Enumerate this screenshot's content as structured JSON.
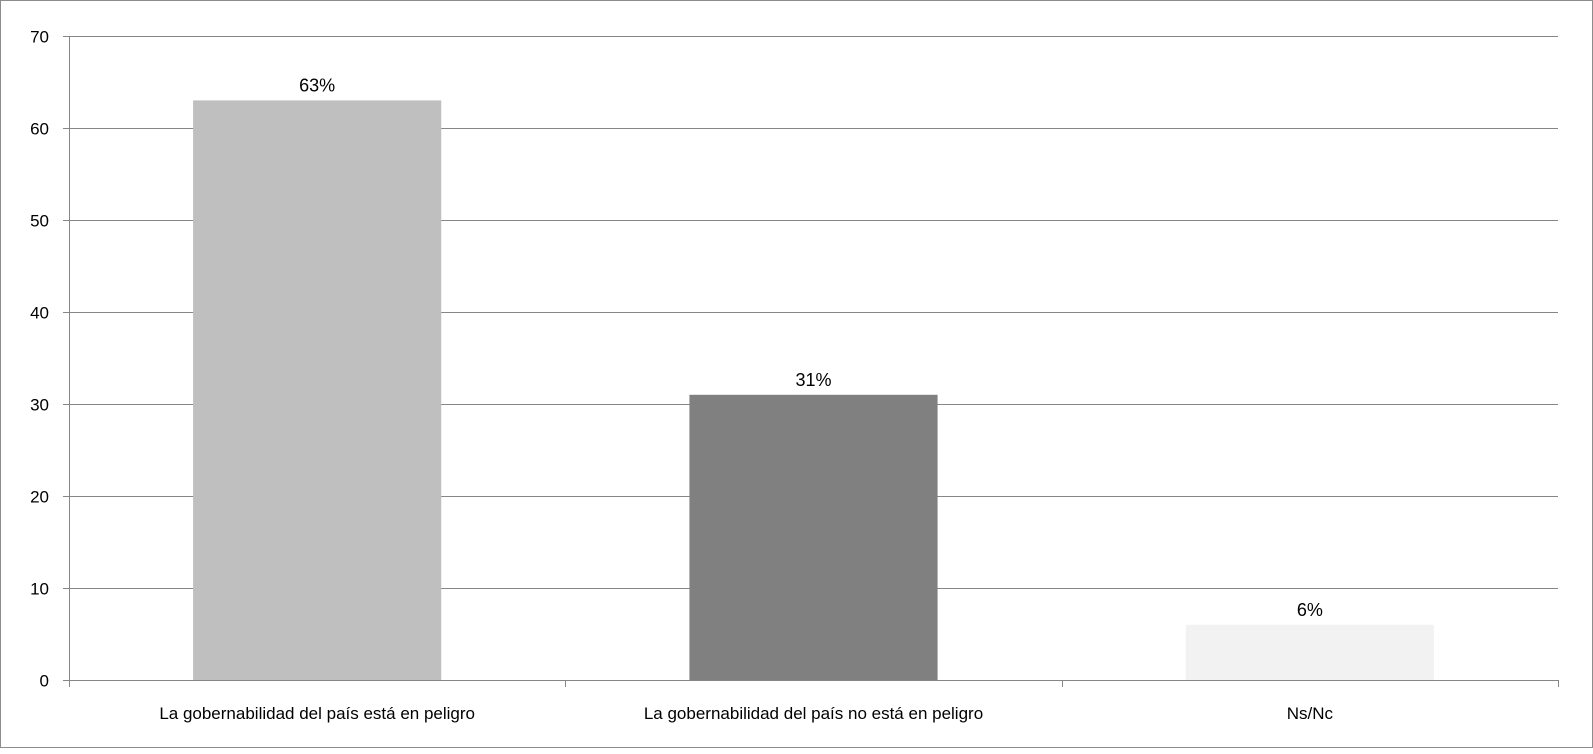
{
  "chart_data": {
    "type": "bar",
    "title": "",
    "xlabel": "",
    "ylabel": "",
    "categories": [
      "La gobernabilidad del país está en peligro",
      "La gobernabilidad del país no está en peligro",
      "Ns/Nc"
    ],
    "values": [
      63,
      31,
      6
    ],
    "data_labels": [
      "63%",
      "31%",
      "6%"
    ],
    "bar_colors": [
      "#bfbfbf",
      "#808080",
      "#f2f2f2"
    ],
    "ylim": [
      0,
      70
    ],
    "yticks": [
      0,
      10,
      20,
      30,
      40,
      50,
      60,
      70
    ],
    "grid": true,
    "legend": "none"
  }
}
